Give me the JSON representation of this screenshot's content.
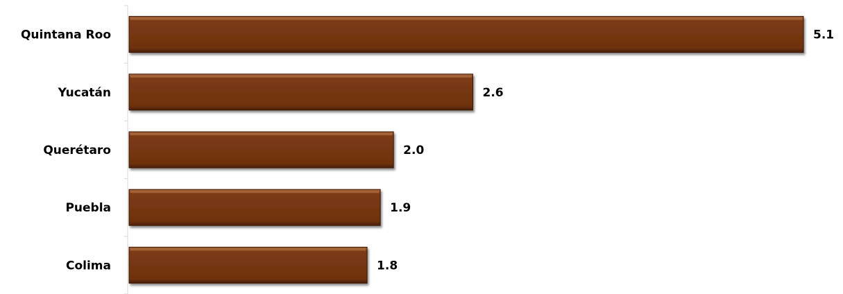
{
  "chart_data": {
    "type": "bar",
    "orientation": "horizontal",
    "categories": [
      "Quintana Roo",
      "Yucatán",
      "Querétaro",
      "Puebla",
      "Colima"
    ],
    "values": [
      5.1,
      2.6,
      2.0,
      1.9,
      1.8
    ],
    "value_labels": [
      "5.1",
      "2.6",
      "2.0",
      "1.9",
      "1.8"
    ],
    "xlim": [
      0,
      5.1
    ],
    "grid": false,
    "legend": "none",
    "bar_color": "#7a3a12"
  }
}
